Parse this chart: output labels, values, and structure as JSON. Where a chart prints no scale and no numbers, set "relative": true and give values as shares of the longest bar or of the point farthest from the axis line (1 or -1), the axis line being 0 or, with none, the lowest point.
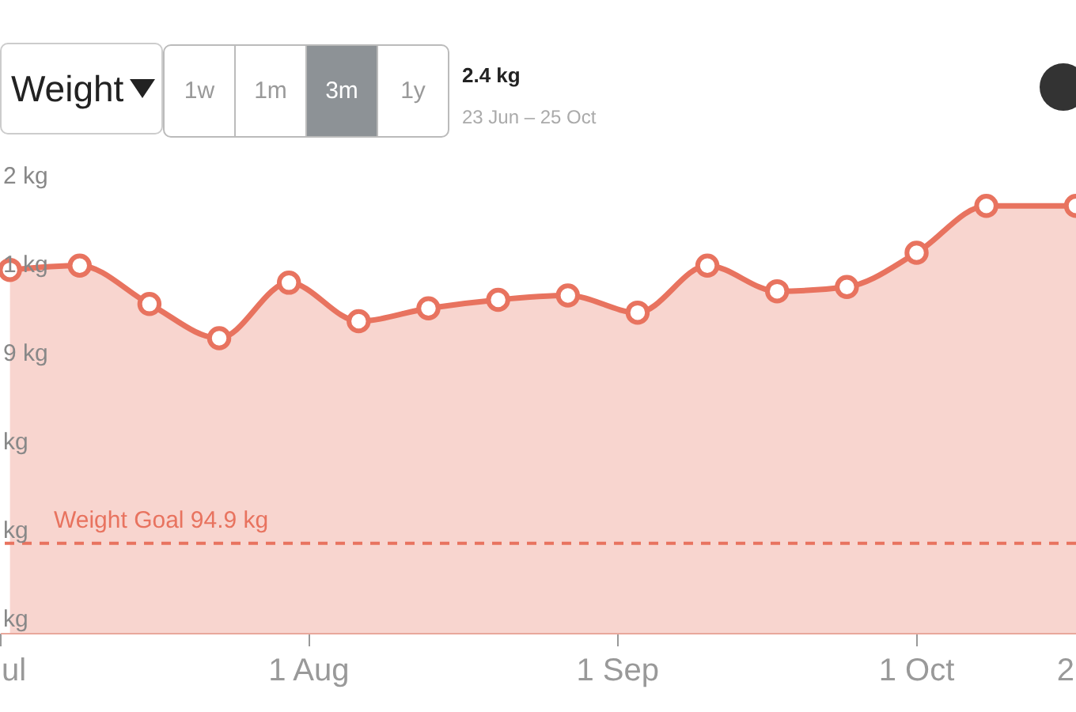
{
  "chart_data": {
    "type": "area",
    "title": "Weight",
    "relative": true,
    "x": [
      "--07-02",
      "--07-09",
      "--07-16",
      "--07-23",
      "--07-30",
      "--08-06",
      "--08-13",
      "--08-20",
      "--08-27",
      "--09-03",
      "--09-10",
      "--09-17",
      "--09-24",
      "--10-01",
      "--10-08",
      "--10-17"
    ],
    "series": [
      {
        "color": "#e8735f",
        "values": [
          0.85,
          0.86,
          0.77,
          0.69,
          0.82,
          0.73,
          0.76,
          0.78,
          0.79,
          0.75,
          0.86,
          0.8,
          0.81,
          0.89,
          1,
          1
        ]
      }
    ],
    "xlim": [
      "--07-01",
      "--10-17"
    ],
    "xticks": [
      {
        "value": "--07-01",
        "label": "ul"
      },
      {
        "value": "--08-01",
        "label": "1 Aug"
      },
      {
        "value": "--09-01",
        "label": "1 Sep"
      },
      {
        "value": "--10-01",
        "label": "1 Oct"
      },
      {
        "value": "--10-17",
        "label": "2"
      }
    ],
    "ref_lines": [
      {
        "axis": "y",
        "value": 0.21,
        "label": "Weight Goal 94.9 kg",
        "color": "#e8735f",
        "line_style": "dashed"
      }
    ],
    "marker": "circle",
    "line_style": "solid",
    "annotations": [
      "1w",
      "1m",
      "3m",
      "1y",
      "2.4 kg",
      "23 Jun – 25 Oct",
      "2 kg",
      "1 kg",
      "9 kg",
      "kg",
      "kg",
      "kg"
    ]
  }
}
